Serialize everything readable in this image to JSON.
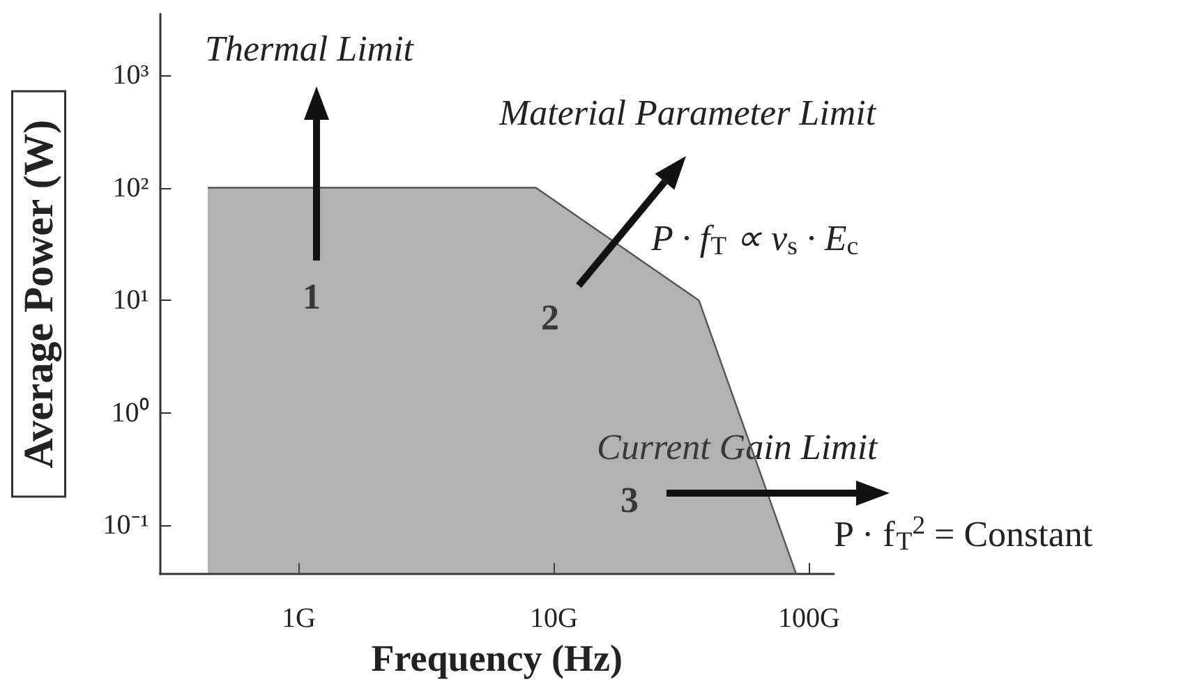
{
  "chart_data": {
    "type": "area",
    "xlabel": "Frequency (Hz)",
    "ylabel": "Average Power (W)",
    "x": [
      0.44,
      8.5,
      37,
      89
    ],
    "values": [
      100,
      100,
      10,
      0.037
    ],
    "color": "#555555",
    "log": "xy",
    "xlim": [
      0.286,
      125
    ],
    "ylim": [
      0.037,
      3500
    ],
    "xticks": [
      {
        "value": 1,
        "label": "1G"
      },
      {
        "value": 10,
        "label": "10G"
      },
      {
        "value": 100,
        "label": "100G"
      }
    ],
    "yticks": [
      {
        "value": 0.1,
        "label": "10⁻¹"
      },
      {
        "value": 1,
        "label": "10⁰"
      },
      {
        "value": 10,
        "label": "10¹"
      },
      {
        "value": 100,
        "label": "10²"
      },
      {
        "value": 1000,
        "label": "10³"
      }
    ],
    "grid": false,
    "marker": "none",
    "annotations": [
      "Thermal Limit",
      "1",
      "Material Parameter Limit",
      "2",
      "P · f$_{T}$ ∝ v$_{s}$ · E$_{c}$",
      "Current Gain Limit",
      "3",
      "P · f$_{T}$$^{2}$ = Constant"
    ]
  }
}
